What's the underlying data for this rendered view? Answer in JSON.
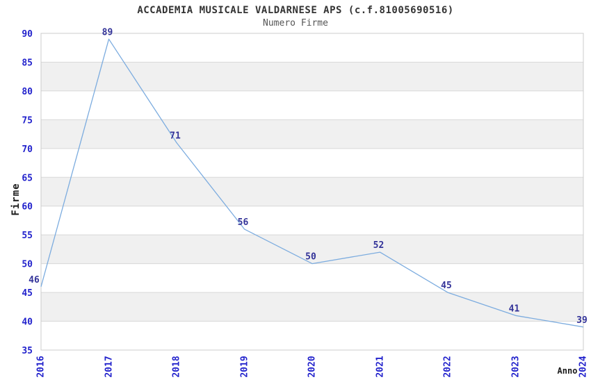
{
  "header": {
    "title": "ACCADEMIA MUSICALE VALDARNESE APS (c.f.81005690516)",
    "subtitle": "Numero Firme"
  },
  "chart_data": {
    "type": "line",
    "title": "ACCADEMIA MUSICALE VALDARNESE APS (c.f.81005690516)",
    "subtitle": "Numero Firme",
    "xlabel": "Anno",
    "ylabel": "Firme",
    "categories": [
      "2016",
      "2017",
      "2018",
      "2019",
      "2020",
      "2021",
      "2022",
      "2023",
      "2024"
    ],
    "values": [
      46,
      89,
      71,
      56,
      50,
      52,
      45,
      41,
      39
    ],
    "data_labels_shown": true,
    "ylim": [
      35,
      90
    ],
    "ytick_step": 5,
    "yticks": [
      35,
      40,
      45,
      50,
      55,
      60,
      65,
      70,
      75,
      80,
      85,
      90
    ],
    "grid": "horizontal-only",
    "alternating_bands": true,
    "legend": "none",
    "colors": {
      "line": "#7cacdf",
      "tick_label": "#2222cc",
      "data_label": "#333399",
      "grid_line": "#d8d8d8",
      "band_fill": "#f0f0f0",
      "plot_border": "#cccccc",
      "title": "#333333",
      "subtitle": "#555555",
      "axis_title": "#1a1a1a",
      "background": "#ffffff"
    }
  }
}
